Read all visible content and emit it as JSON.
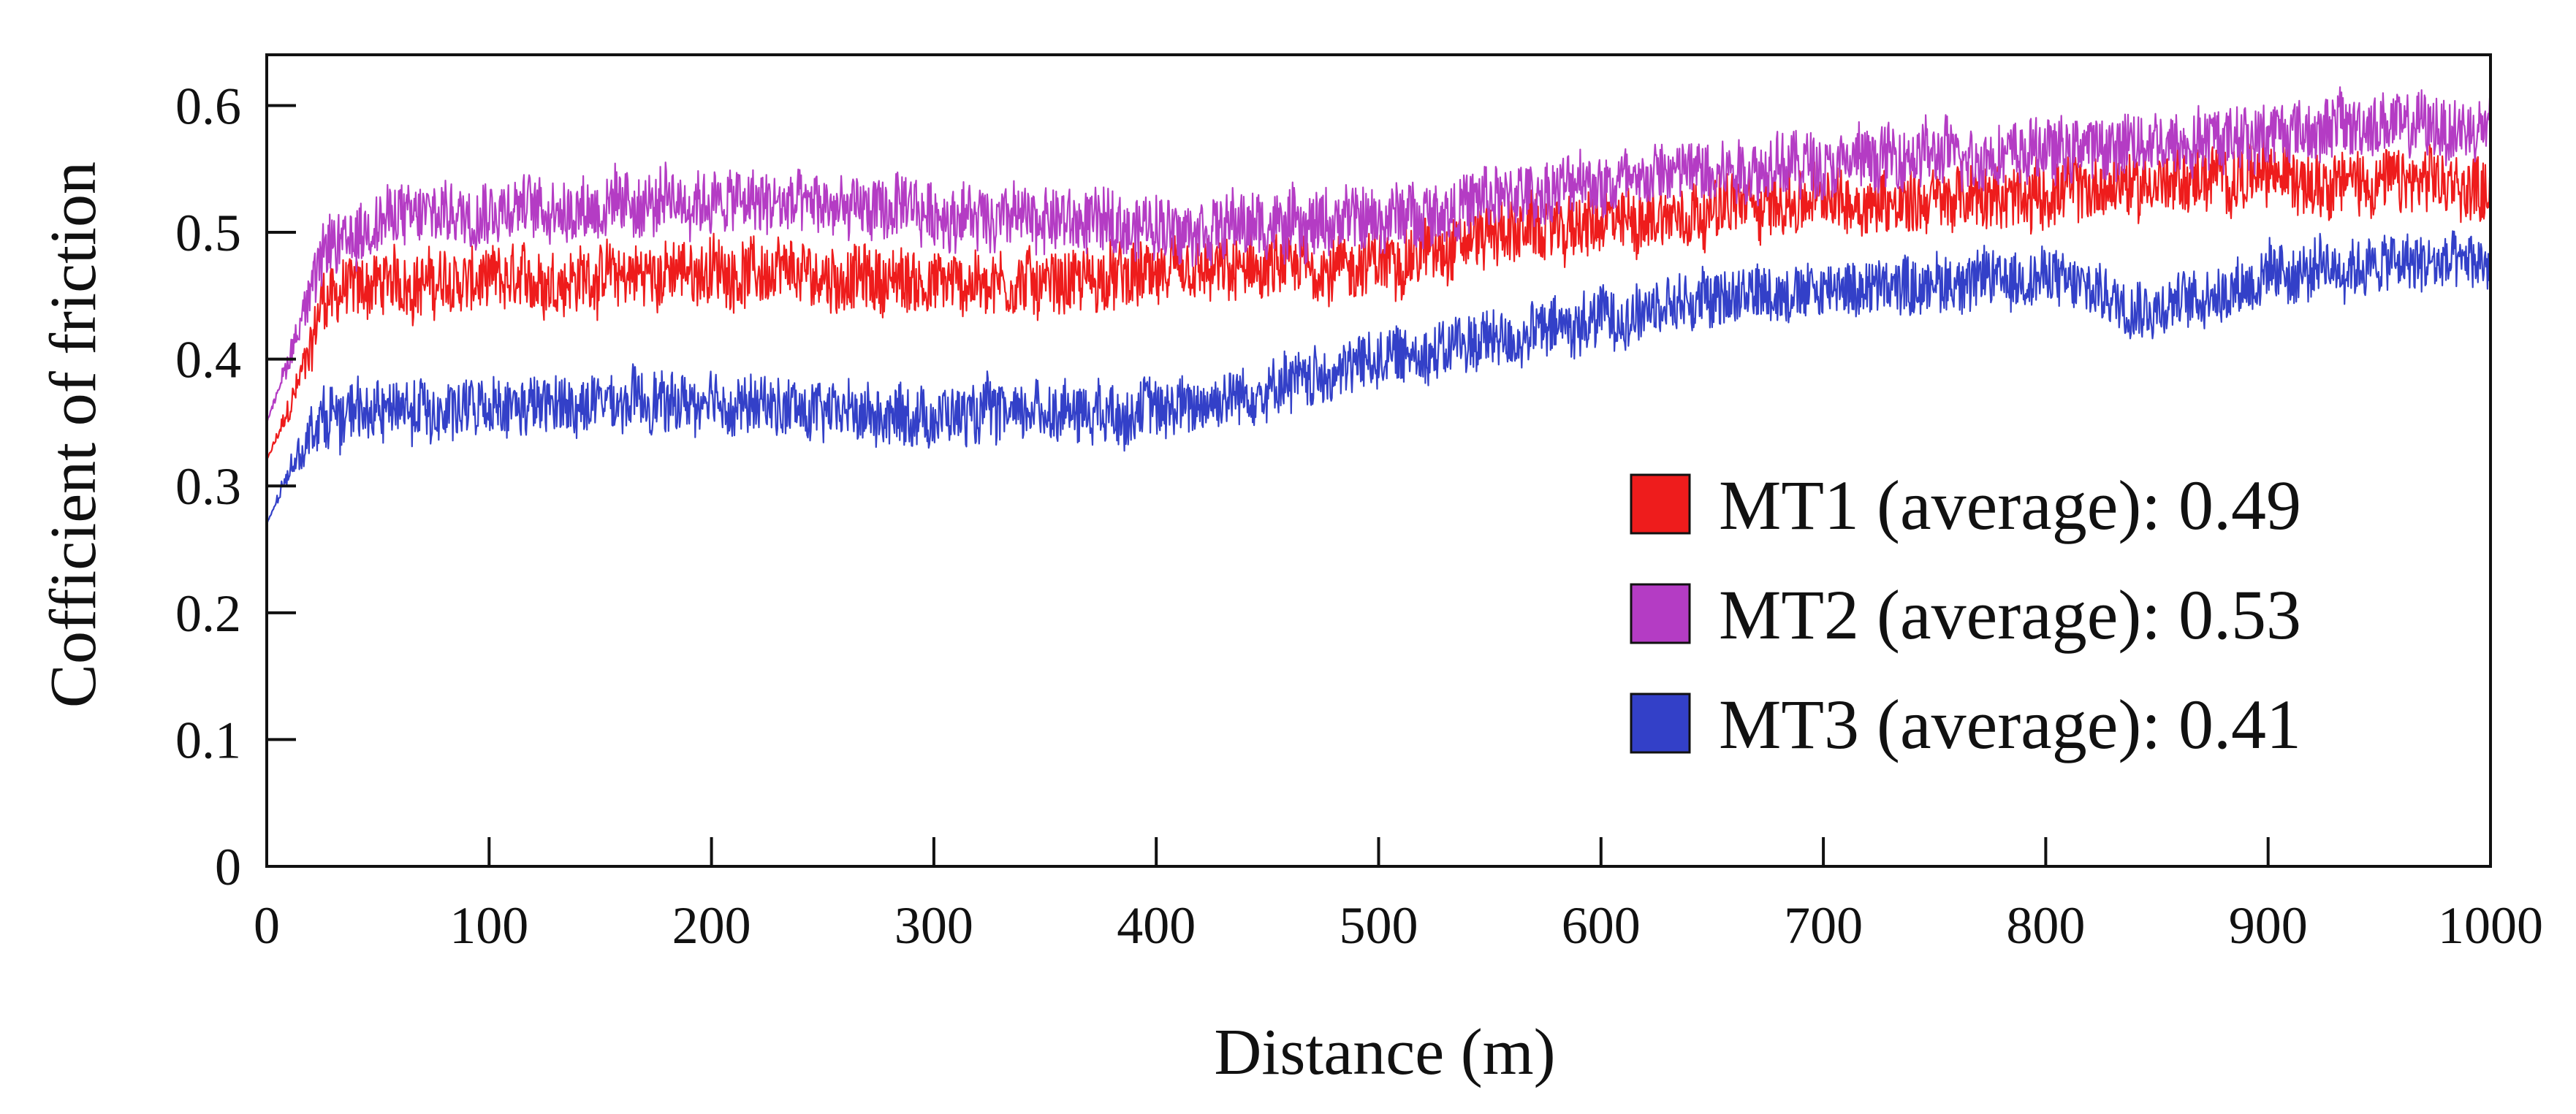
{
  "chart_data": {
    "type": "line",
    "title": "",
    "xlabel": "Distance (m)",
    "ylabel": "Cofficient of friction",
    "xlim": [
      0,
      1000
    ],
    "ylim": [
      0,
      0.64
    ],
    "x_ticks": [
      0,
      100,
      200,
      300,
      400,
      500,
      600,
      700,
      800,
      900,
      1000
    ],
    "y_ticks": [
      0,
      0.1,
      0.2,
      0.3,
      0.4,
      0.5,
      0.6
    ],
    "x_tick_labels": [
      "0",
      "100",
      "200",
      "300",
      "400",
      "500",
      "600",
      "700",
      "800",
      "900",
      "1000"
    ],
    "y_tick_labels": [
      "0",
      "0.1",
      "0.2",
      "0.3",
      "0.4",
      "0.5",
      "0.6"
    ],
    "grid": false,
    "legend_position": "bottom-right",
    "x": [
      0,
      10,
      20,
      25,
      50,
      100,
      150,
      200,
      250,
      300,
      350,
      400,
      450,
      500,
      550,
      600,
      650,
      700,
      750,
      800,
      850,
      900,
      950,
      1000
    ],
    "series": [
      {
        "name": "MT1 (average): 0.49",
        "label": "MT1 (average): 0.49",
        "color": "#ee1c1c",
        "noise": 0.022,
        "values": [
          0.32,
          0.36,
          0.41,
          0.45,
          0.46,
          0.46,
          0.465,
          0.47,
          0.465,
          0.46,
          0.46,
          0.465,
          0.47,
          0.475,
          0.5,
          0.505,
          0.52,
          0.525,
          0.525,
          0.53,
          0.54,
          0.545,
          0.54,
          0.535
        ]
      },
      {
        "name": "MT2 (average): 0.53",
        "label": "MT2 (average): 0.53",
        "color": "#b43cc4",
        "noise": 0.022,
        "values": [
          0.35,
          0.4,
          0.46,
          0.48,
          0.51,
          0.52,
          0.52,
          0.525,
          0.52,
          0.515,
          0.51,
          0.505,
          0.505,
          0.51,
          0.525,
          0.54,
          0.55,
          0.555,
          0.56,
          0.565,
          0.57,
          0.58,
          0.585,
          0.58
        ]
      },
      {
        "name": "MT3 (average): 0.41",
        "label": "MT3 (average): 0.41",
        "color": "#3340c8",
        "noise": 0.02,
        "values": [
          0.27,
          0.31,
          0.345,
          0.355,
          0.36,
          0.36,
          0.365,
          0.365,
          0.36,
          0.355,
          0.36,
          0.36,
          0.375,
          0.4,
          0.415,
          0.43,
          0.45,
          0.455,
          0.46,
          0.465,
          0.44,
          0.465,
          0.475,
          0.475
        ]
      }
    ]
  }
}
